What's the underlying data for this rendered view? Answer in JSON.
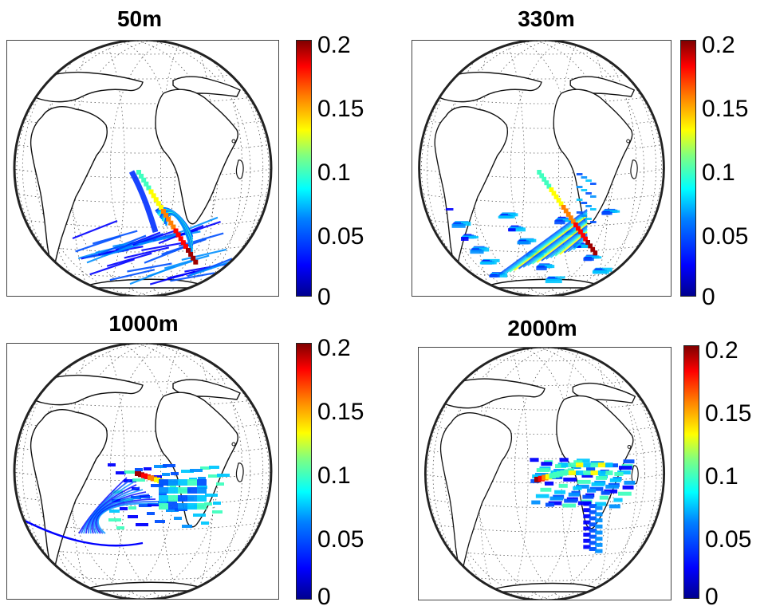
{
  "panels": [
    {
      "title": "50m",
      "plume": "p50"
    },
    {
      "title": "330m",
      "plume": "p330"
    },
    {
      "title": "1000m",
      "plume": "p1000"
    },
    {
      "title": "2000m",
      "plume": "p2000"
    }
  ],
  "colorbar": {
    "ticks": [
      "0.2",
      "0.15",
      "0.1",
      "0.05",
      "0"
    ],
    "colormap": [
      "#00008f",
      "#0000ff",
      "#00ffff",
      "#ffff00",
      "#ff0000",
      "#800000"
    ]
  }
}
